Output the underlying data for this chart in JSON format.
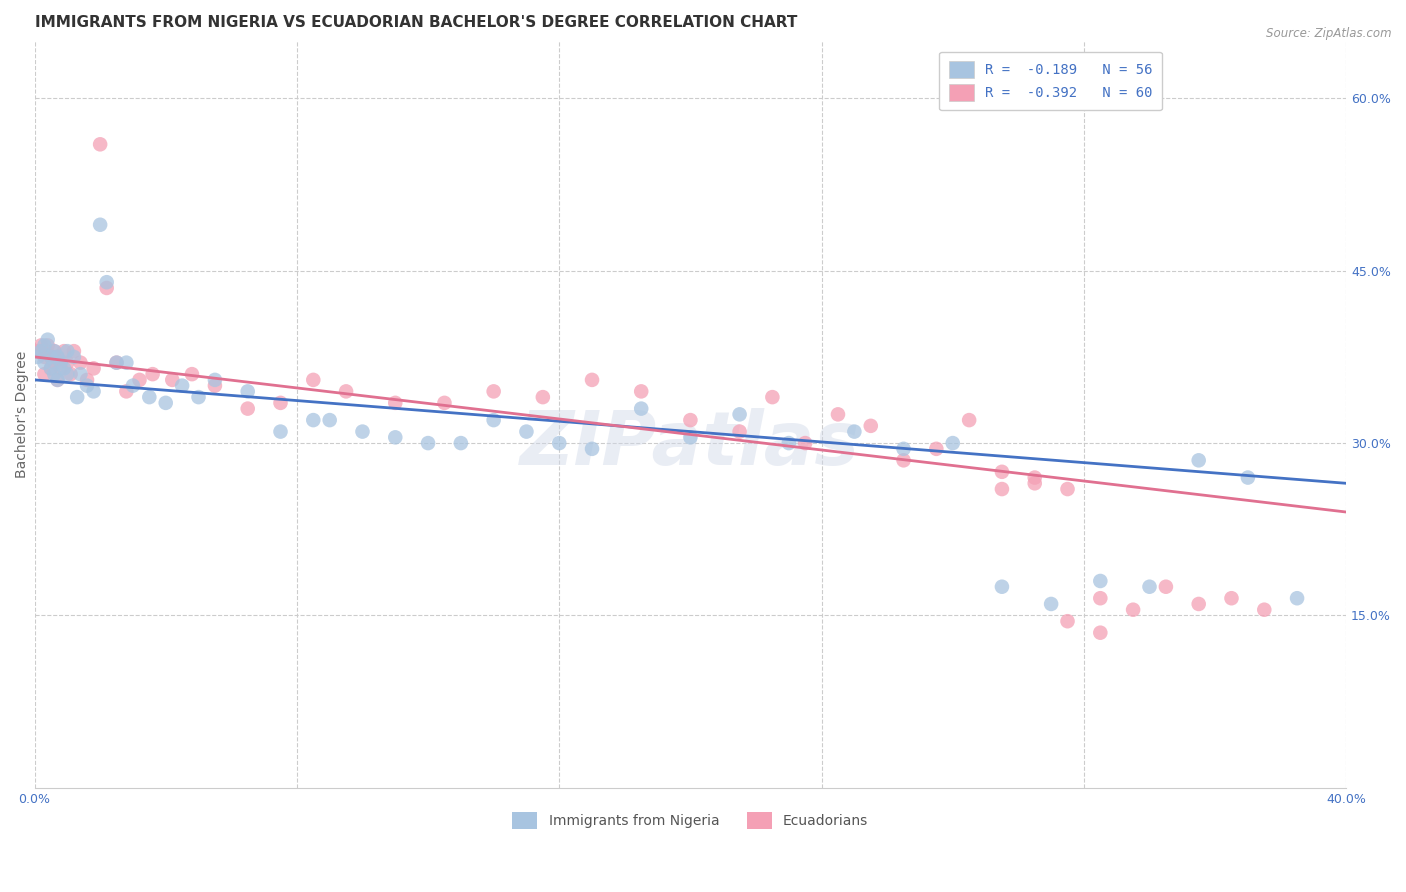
{
  "title": "IMMIGRANTS FROM NIGERIA VS ECUADORIAN BACHELOR'S DEGREE CORRELATION CHART",
  "source": "Source: ZipAtlas.com",
  "ylabel": "Bachelor's Degree",
  "xlim": [
    0.0,
    0.4
  ],
  "ylim": [
    0.0,
    0.65
  ],
  "x_ticks": [
    0.0,
    0.08,
    0.16,
    0.24,
    0.32,
    0.4
  ],
  "x_tick_labels": [
    "0.0%",
    "",
    "",
    "",
    "",
    "40.0%"
  ],
  "y_ticks_right": [
    0.15,
    0.3,
    0.45,
    0.6
  ],
  "y_tick_labels_right": [
    "15.0%",
    "30.0%",
    "45.0%",
    "60.0%"
  ],
  "legend_label1": "R =  -0.189   N = 56",
  "legend_label2": "R =  -0.392   N = 60",
  "legend_label_bottom1": "Immigrants from Nigeria",
  "legend_label_bottom2": "Ecuadorians",
  "color_blue": "#a8c4e0",
  "color_pink": "#f4a0b5",
  "line_color_blue": "#4472c4",
  "line_color_pink": "#e07090",
  "nigeria_x": [
    0.001,
    0.002,
    0.003,
    0.003,
    0.004,
    0.005,
    0.005,
    0.006,
    0.006,
    0.007,
    0.007,
    0.008,
    0.009,
    0.01,
    0.01,
    0.012,
    0.013,
    0.014,
    0.016,
    0.018,
    0.02,
    0.022,
    0.025,
    0.028,
    0.03,
    0.035,
    0.04,
    0.045,
    0.05,
    0.055,
    0.065,
    0.075,
    0.085,
    0.09,
    0.1,
    0.11,
    0.12,
    0.13,
    0.14,
    0.15,
    0.16,
    0.17,
    0.185,
    0.2,
    0.215,
    0.23,
    0.25,
    0.265,
    0.28,
    0.295,
    0.31,
    0.325,
    0.34,
    0.355,
    0.37,
    0.385
  ],
  "nigeria_y": [
    0.375,
    0.38,
    0.385,
    0.37,
    0.39,
    0.375,
    0.365,
    0.38,
    0.36,
    0.375,
    0.355,
    0.37,
    0.365,
    0.38,
    0.36,
    0.375,
    0.34,
    0.36,
    0.35,
    0.345,
    0.49,
    0.44,
    0.37,
    0.37,
    0.35,
    0.34,
    0.335,
    0.35,
    0.34,
    0.355,
    0.345,
    0.31,
    0.32,
    0.32,
    0.31,
    0.305,
    0.3,
    0.3,
    0.32,
    0.31,
    0.3,
    0.295,
    0.33,
    0.305,
    0.325,
    0.3,
    0.31,
    0.295,
    0.3,
    0.175,
    0.16,
    0.18,
    0.175,
    0.285,
    0.27,
    0.165
  ],
  "ecuador_x": [
    0.001,
    0.002,
    0.003,
    0.003,
    0.004,
    0.005,
    0.005,
    0.006,
    0.006,
    0.007,
    0.007,
    0.008,
    0.009,
    0.01,
    0.011,
    0.012,
    0.014,
    0.016,
    0.018,
    0.02,
    0.022,
    0.025,
    0.028,
    0.032,
    0.036,
    0.042,
    0.048,
    0.055,
    0.065,
    0.075,
    0.085,
    0.095,
    0.11,
    0.125,
    0.14,
    0.155,
    0.17,
    0.185,
    0.2,
    0.215,
    0.225,
    0.235,
    0.245,
    0.255,
    0.265,
    0.275,
    0.285,
    0.295,
    0.305,
    0.315,
    0.325,
    0.335,
    0.345,
    0.355,
    0.365,
    0.375,
    0.295,
    0.305,
    0.315,
    0.325
  ],
  "ecuador_y": [
    0.38,
    0.385,
    0.375,
    0.36,
    0.385,
    0.375,
    0.365,
    0.38,
    0.37,
    0.375,
    0.355,
    0.365,
    0.38,
    0.37,
    0.36,
    0.38,
    0.37,
    0.355,
    0.365,
    0.56,
    0.435,
    0.37,
    0.345,
    0.355,
    0.36,
    0.355,
    0.36,
    0.35,
    0.33,
    0.335,
    0.355,
    0.345,
    0.335,
    0.335,
    0.345,
    0.34,
    0.355,
    0.345,
    0.32,
    0.31,
    0.34,
    0.3,
    0.325,
    0.315,
    0.285,
    0.295,
    0.32,
    0.26,
    0.27,
    0.26,
    0.165,
    0.155,
    0.175,
    0.16,
    0.165,
    0.155,
    0.275,
    0.265,
    0.145,
    0.135
  ],
  "watermark": "ZIPatlas",
  "title_fontsize": 11,
  "axis_fontsize": 10,
  "tick_fontsize": 9,
  "nigeria_line_start_y": 0.355,
  "nigeria_line_end_y": 0.265,
  "ecuador_line_start_y": 0.375,
  "ecuador_line_end_y": 0.24
}
